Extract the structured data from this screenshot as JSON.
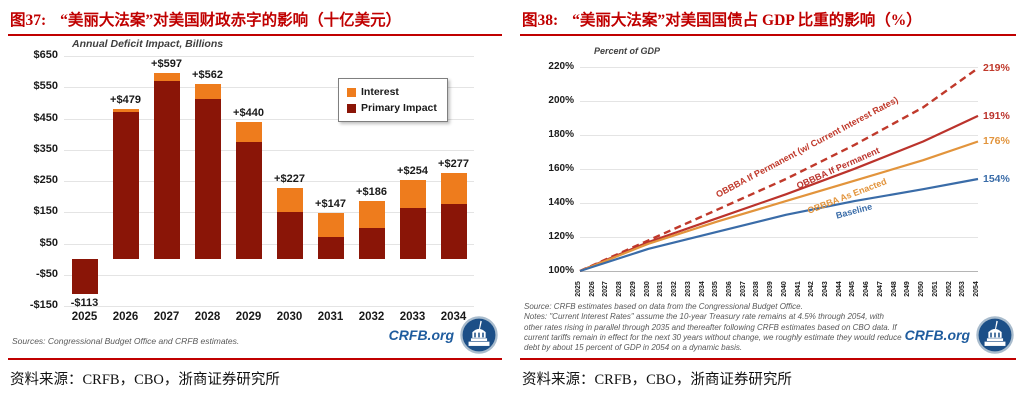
{
  "figures": [
    {
      "label": "图37:",
      "title": "“美丽大法案”对美国财政赤字的影响（十亿美元）",
      "caption": "资料来源：CRFB，CBO，浙商证券研究所"
    },
    {
      "label": "图38:",
      "title": "“美丽大法案”对美国国债占 GDP 比重的影响（%）",
      "caption": "资料来源：CRFB，CBO，浙商证券研究所"
    }
  ],
  "chart_data": [
    {
      "type": "bar",
      "stacked": true,
      "title": "Annual Deficit Impact, Billions",
      "categories": [
        "2025",
        "2026",
        "2027",
        "2028",
        "2029",
        "2030",
        "2031",
        "2032",
        "2033",
        "2034"
      ],
      "series": [
        {
          "name": "Interest",
          "color": "#ee7c1d",
          "values": [
            0,
            9,
            27,
            50,
            65,
            75,
            77,
            86,
            89,
            101
          ]
        },
        {
          "name": "Primary Impact",
          "color": "#8a1507",
          "values": [
            -113,
            470,
            570,
            512,
            375,
            152,
            70,
            100,
            165,
            176
          ]
        }
      ],
      "total_labels": [
        "-$113",
        "+$479",
        "+$597",
        "+$562",
        "+$440",
        "+$227",
        "+$147",
        "+$186",
        "+$254",
        "+$277"
      ],
      "totals": [
        -113,
        479,
        597,
        562,
        440,
        227,
        147,
        186,
        254,
        277
      ],
      "ylim": [
        -150,
        650
      ],
      "ytick_step": 100,
      "ytick_labels": [
        "$650",
        "$550",
        "$450",
        "$350",
        "$250",
        "$150",
        "$50",
        "-$50",
        "-$150"
      ],
      "grid": true,
      "legend_position": "top-right-inside",
      "source_note": "Sources: Congressional Budget Office and CRFB estimates.",
      "watermark": "CRFB.org"
    },
    {
      "type": "line",
      "title": "Percent of GDP",
      "x_years": [
        "2025",
        "2026",
        "2027",
        "2028",
        "2029",
        "2030",
        "2031",
        "2032",
        "2033",
        "2034",
        "2035",
        "2036",
        "2037",
        "2038",
        "2039",
        "2040",
        "2041",
        "2042",
        "2043",
        "2044",
        "2045",
        "2046",
        "2047",
        "2048",
        "2049",
        "2050",
        "2051",
        "2052",
        "2053",
        "2054"
      ],
      "series": [
        {
          "name": "OBBBA If Permanent (w/ Current Interest Rates)",
          "style": "dashed",
          "color": "#c0392b",
          "end_label": "219%",
          "points": [
            [
              2025,
              100
            ],
            [
              2030,
              118
            ],
            [
              2035,
              136
            ],
            [
              2040,
              154
            ],
            [
              2045,
              174
            ],
            [
              2050,
              196
            ],
            [
              2054,
              219
            ]
          ]
        },
        {
          "name": "OBBBA If Permanent",
          "style": "solid",
          "color": "#bb332c",
          "end_label": "191%",
          "points": [
            [
              2025,
              100
            ],
            [
              2030,
              117
            ],
            [
              2035,
              131
            ],
            [
              2040,
              145
            ],
            [
              2045,
              160
            ],
            [
              2050,
              176
            ],
            [
              2054,
              191
            ]
          ]
        },
        {
          "name": "OBBBA As Enacted",
          "style": "solid",
          "color": "#e2943c",
          "end_label": "176%",
          "points": [
            [
              2025,
              100
            ],
            [
              2030,
              116
            ],
            [
              2035,
              129
            ],
            [
              2040,
              141
            ],
            [
              2045,
              153
            ],
            [
              2050,
              165
            ],
            [
              2054,
              176
            ]
          ]
        },
        {
          "name": "Baseline",
          "style": "solid",
          "color": "#3a6ca8",
          "end_label": "154%",
          "points": [
            [
              2025,
              100
            ],
            [
              2030,
              113
            ],
            [
              2035,
              123
            ],
            [
              2040,
              133
            ],
            [
              2045,
              141
            ],
            [
              2050,
              148
            ],
            [
              2054,
              154
            ]
          ]
        }
      ],
      "ylim": [
        100,
        225
      ],
      "ytick_values": [
        220,
        200,
        180,
        160,
        140,
        120,
        100
      ],
      "ytick_labels": [
        "220%",
        "200%",
        "180%",
        "160%",
        "140%",
        "120%",
        "100%"
      ],
      "grid": true,
      "source_note": "Source: CRFB estimates based on data from the Congressional Budget Office.",
      "notes": "Notes: \"Current Interest Rates\" assume the 10-year Treasury rate remains at 4.5% through 2054, with other rates rising in parallel through 2035 and thereafter following CRFB estimates based on CBO data. If current tariffs remain in effect for the next 30 years without change, we roughly estimate they would reduce debt by about 15 percent of GDP in 2054 on a dynamic basis.",
      "watermark": "CRFB.org"
    }
  ]
}
